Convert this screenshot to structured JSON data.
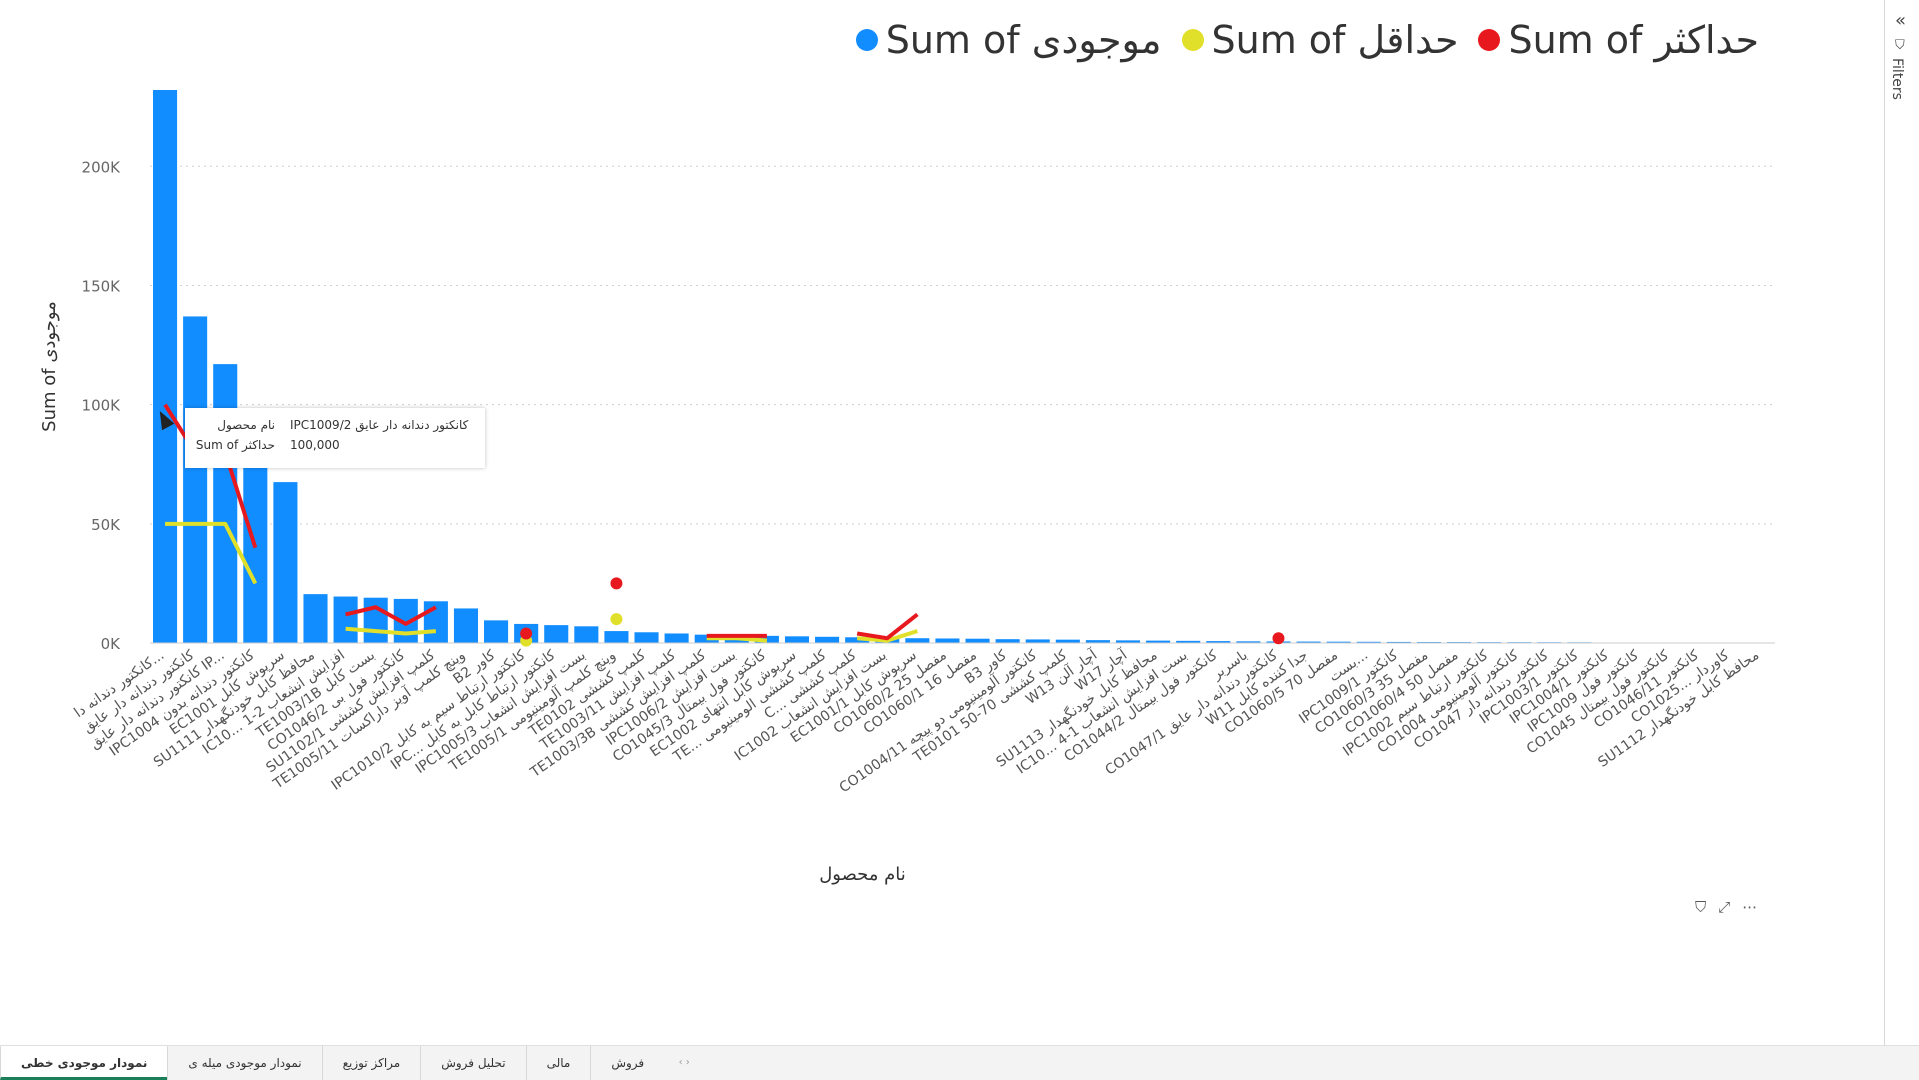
{
  "legend": {
    "items": [
      {
        "label": "Sum of موجودی",
        "color": "#118DFF"
      },
      {
        "label": "Sum of حداقل",
        "color": "#E0E02A"
      },
      {
        "label": "Sum of حداکثر",
        "color": "#E8191E"
      }
    ]
  },
  "filters": {
    "label": "Filters"
  },
  "tooltip": {
    "row1_key": "نام محصول",
    "row1_value": "IPC1009/2 کانکتور دندانه دار عایق",
    "row2_key": "Sum of حداکثر",
    "row2_value": "100,000"
  },
  "tabs": [
    {
      "label": "فروش",
      "active": false
    },
    {
      "label": "مالی",
      "active": false
    },
    {
      "label": "تحلیل فروش",
      "active": false
    },
    {
      "label": "مراکز توزیع",
      "active": false
    },
    {
      "label": "نمودار موجودی میله ی",
      "active": false
    },
    {
      "label": "نمودار موجودی خطی",
      "active": true
    }
  ],
  "tab_nav": "‹ ›",
  "chart_data": {
    "type": "bar",
    "xlabel": "نام محصول",
    "ylabel": "Sum of موجودی",
    "ylim": [
      0,
      232000
    ],
    "yticks": [
      "0K",
      "50K",
      "100K",
      "150K",
      "200K"
    ],
    "ytick_values": [
      0,
      50000,
      100000,
      150000,
      200000
    ],
    "grid": true,
    "legend_position": "top-right",
    "categories": [
      "کانکتور دندانه دا...",
      "کانکتور دندانه دار عایق",
      "کانکتور دندانه دار عایق IP...",
      "IPC1004 کانکتور دندانه بدون",
      "EC1001 سرپوش کابل",
      "SU1111 محافظ کابل خودنگهدار",
      "IC10... 1-2 افزایش انشعاب",
      "TE1003/1B بست کابل",
      "CO1046/2 کانکتور فول بی",
      "SU1102/1 کلمپ افزایش کششی",
      "TE1005/11 وینچ کلمپ آویز داراکسات",
      "B2 کاور",
      "IPC1010/2 کانکتور ارتباط سیم به کابل",
      "IPC... کانکتور ارتباط کابل به کابل",
      "IPC1005/3 بست افزایش انشعاب",
      "TE1005/1 وینچ کلمپ آلومینیومی",
      "TE0102 کلمپ کششی",
      "TE1003/11 کلمپ افزایش",
      "TE1003/3B کلمپ افزایش کششی",
      "IPC1006/2 بست افزایش",
      "CO1045/3 کانکتور فول بیمتال",
      "EC1002 سرپوش کابل انتهای",
      "TE... کلمپ کششی الومینیومی",
      "C... کلمپ کششی",
      "IC1002 بست افزایش انشعاب",
      "EC1001/1 سرپوش کابل",
      "CO1060/2 مفصل 25",
      "CO1060/1 مفصل 16",
      "B3 کاور",
      "CO1004/11 کانکتور آلومینیومی دو پیچه",
      "TE0101 کلمپ کششی 70-50",
      "W13 آچار آلن",
      "W17 آچار",
      "SU1113 محافظ کابل خودنگهدار",
      "IC10... بست افزایش انشعاب 1-4",
      "CO1044/2 کانکتور فول بیمتال",
      "باسربر",
      "CO1047/1 کانکتور دندانه دار عایق",
      "W11 جدا کننده کابل",
      "CO1060/5 مفصل 70",
      "بست...",
      "IPC1009/1 کانکتور",
      "CO1060/3 مفصل 35",
      "CO1060/4 مفصل 50",
      "IPC1002 کانکتور ارتباط سیم",
      "CO1004 کانکتور آلومینیومی",
      "CO1047 کانکتور دندانه دار",
      "IPC1003/1 کانکتور",
      "IPC1004/1 کانکتور",
      "IPC1009 کانکتور فول",
      "CO1045 کانکتور فول بیمتال",
      "CO1046/11 کانکتور",
      "CO1025... کاوردار",
      "SU1112 محافظ کابل خودنگهدار"
    ],
    "series": [
      {
        "name": "Sum of موجودی",
        "color": "#118DFF",
        "kind": "bar",
        "values": [
          232000,
          137000,
          117000,
          76000,
          67500,
          20500,
          19500,
          19000,
          18500,
          17500,
          14500,
          9500,
          8000,
          7500,
          7000,
          5000,
          4500,
          4000,
          3500,
          3200,
          3000,
          2800,
          2600,
          2400,
          2200,
          2000,
          1900,
          1800,
          1600,
          1500,
          1400,
          1200,
          1100,
          1000,
          900,
          800,
          700,
          650,
          600,
          550,
          500,
          450,
          400,
          380,
          360,
          340,
          320,
          300,
          0,
          0,
          0,
          0,
          0,
          0
        ]
      },
      {
        "name": "Sum of حداقل",
        "color": "#E0E02A",
        "kind": "line",
        "values": [
          50000,
          50000,
          50000,
          25000,
          null,
          null,
          6000,
          5000,
          4000,
          5000,
          null,
          null,
          1000,
          null,
          null,
          10000,
          null,
          null,
          2000,
          2000,
          1000,
          null,
          null,
          2000,
          1000,
          5000,
          null,
          null,
          null,
          null,
          null,
          null,
          null,
          null,
          null,
          null,
          null,
          null,
          null,
          null,
          null,
          null,
          null,
          null,
          null,
          null,
          null,
          null,
          null,
          null,
          null,
          null,
          null,
          null
        ]
      },
      {
        "name": "Sum of حداکثر",
        "color": "#E8191E",
        "kind": "line",
        "values": [
          100000,
          80000,
          80000,
          40000,
          null,
          null,
          12000,
          15000,
          8000,
          15000,
          null,
          null,
          4000,
          null,
          null,
          25000,
          null,
          null,
          3000,
          3000,
          3000,
          null,
          null,
          4000,
          2000,
          12000,
          null,
          null,
          null,
          null,
          null,
          null,
          null,
          null,
          null,
          null,
          null,
          2000,
          null,
          null,
          null,
          null,
          null,
          null,
          null,
          null,
          null,
          null,
          null,
          null,
          null,
          null,
          null,
          null
        ]
      }
    ]
  }
}
